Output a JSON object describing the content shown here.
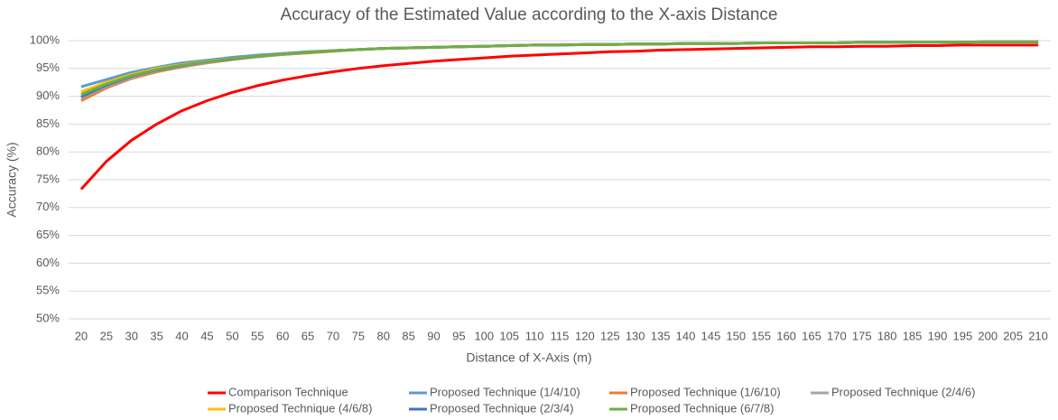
{
  "chart_data": {
    "type": "line",
    "title": "Accuracy of the Estimated Value according to the X-axis Distance",
    "x_label": "Distance of X-Axis (m)",
    "y_label": "Accuracy (%)",
    "categories": [
      20,
      25,
      30,
      35,
      40,
      45,
      50,
      55,
      60,
      65,
      70,
      75,
      80,
      85,
      90,
      95,
      100,
      105,
      110,
      115,
      120,
      125,
      130,
      135,
      140,
      145,
      150,
      155,
      160,
      165,
      170,
      175,
      180,
      185,
      190,
      195,
      200,
      205,
      210
    ],
    "ylim": [
      50,
      100
    ],
    "yticks": [
      {
        "value": 50,
        "label": "50%"
      },
      {
        "value": 55,
        "label": "55%"
      },
      {
        "value": 60,
        "label": "60%"
      },
      {
        "value": 65,
        "label": "65%"
      },
      {
        "value": 70,
        "label": "70%"
      },
      {
        "value": 75,
        "label": "75%"
      },
      {
        "value": 80,
        "label": "80%"
      },
      {
        "value": 85,
        "label": "85%"
      },
      {
        "value": 90,
        "label": "90%"
      },
      {
        "value": 95,
        "label": "95%"
      },
      {
        "value": 100,
        "label": "100%"
      }
    ],
    "grid": true,
    "legend": "bottom",
    "series": [
      {
        "name": "Comparison Technique",
        "color": "#ff0000",
        "values": [
          73.3,
          78.3,
          82.1,
          85.0,
          87.4,
          89.2,
          90.7,
          91.9,
          92.9,
          93.7,
          94.4,
          95.0,
          95.5,
          95.9,
          96.3,
          96.6,
          96.9,
          97.2,
          97.4,
          97.6,
          97.8,
          98.0,
          98.1,
          98.3,
          98.4,
          98.5,
          98.6,
          98.7,
          98.8,
          98.9,
          98.9,
          99.0,
          99.0,
          99.1,
          99.1,
          99.2,
          99.2,
          99.2,
          99.2
        ]
      },
      {
        "name": "Proposed Technique (1/4/10)",
        "color": "#5b9bd5",
        "values": [
          91.7,
          93.0,
          94.3,
          95.2,
          96.0,
          96.5,
          97.0,
          97.4,
          97.7,
          98.0,
          98.2,
          98.4,
          98.6,
          98.7,
          98.8,
          98.9,
          99.0,
          99.1,
          99.2,
          99.2,
          99.3,
          99.3,
          99.4,
          99.4,
          99.5,
          99.5,
          99.5,
          99.6,
          99.6,
          99.6,
          99.6,
          99.7,
          99.7,
          99.7,
          99.7,
          99.7,
          99.8,
          99.8,
          99.8
        ]
      },
      {
        "name": "Proposed Technique (1/6/10)",
        "color": "#ed7d31",
        "values": [
          89.2,
          91.5,
          93.2,
          94.4,
          95.3,
          96.0,
          96.6,
          97.1,
          97.5,
          97.8,
          98.1,
          98.4,
          98.6,
          98.7,
          98.8,
          98.9,
          99.0,
          99.1,
          99.2,
          99.2,
          99.3,
          99.3,
          99.4,
          99.4,
          99.5,
          99.5,
          99.5,
          99.6,
          99.6,
          99.6,
          99.6,
          99.7,
          99.7,
          99.7,
          99.7,
          99.7,
          99.8,
          99.8,
          99.8
        ]
      },
      {
        "name": "Proposed Technique (2/4/6)",
        "color": "#a5a5a5",
        "values": [
          89.7,
          91.8,
          93.4,
          94.6,
          95.4,
          96.1,
          96.7,
          97.1,
          97.5,
          97.9,
          98.2,
          98.4,
          98.6,
          98.7,
          98.8,
          98.9,
          99.0,
          99.1,
          99.2,
          99.2,
          99.3,
          99.3,
          99.4,
          99.4,
          99.5,
          99.5,
          99.5,
          99.6,
          99.6,
          99.6,
          99.6,
          99.7,
          99.7,
          99.7,
          99.7,
          99.7,
          99.8,
          99.8,
          99.8
        ]
      },
      {
        "name": "Proposed Technique (4/6/8)",
        "color": "#ffc000",
        "values": [
          90.8,
          92.5,
          93.9,
          95.0,
          95.7,
          96.3,
          96.8,
          97.2,
          97.6,
          97.9,
          98.2,
          98.4,
          98.6,
          98.7,
          98.8,
          98.9,
          99.0,
          99.1,
          99.2,
          99.2,
          99.3,
          99.3,
          99.4,
          99.4,
          99.5,
          99.5,
          99.5,
          99.6,
          99.6,
          99.6,
          99.6,
          99.7,
          99.7,
          99.7,
          99.7,
          99.7,
          99.8,
          99.8,
          99.8
        ]
      },
      {
        "name": "Proposed Technique (2/3/4)",
        "color": "#4472c4",
        "values": [
          89.9,
          92.0,
          93.6,
          94.7,
          95.5,
          96.2,
          96.7,
          97.2,
          97.6,
          97.9,
          98.2,
          98.4,
          98.6,
          98.7,
          98.8,
          98.9,
          99.0,
          99.1,
          99.2,
          99.2,
          99.3,
          99.3,
          99.4,
          99.4,
          99.5,
          99.5,
          99.5,
          99.6,
          99.6,
          99.6,
          99.6,
          99.7,
          99.7,
          99.7,
          99.7,
          99.7,
          99.8,
          99.8,
          99.8
        ]
      },
      {
        "name": "Proposed Technique (6/7/8)",
        "color": "#70ad47",
        "values": [
          90.3,
          92.2,
          93.7,
          94.8,
          95.6,
          96.2,
          96.8,
          97.2,
          97.6,
          97.9,
          98.2,
          98.4,
          98.6,
          98.7,
          98.8,
          98.9,
          99.0,
          99.1,
          99.2,
          99.2,
          99.3,
          99.3,
          99.4,
          99.4,
          99.5,
          99.5,
          99.5,
          99.6,
          99.6,
          99.6,
          99.6,
          99.7,
          99.7,
          99.7,
          99.7,
          99.7,
          99.8,
          99.8,
          99.8
        ]
      }
    ]
  }
}
